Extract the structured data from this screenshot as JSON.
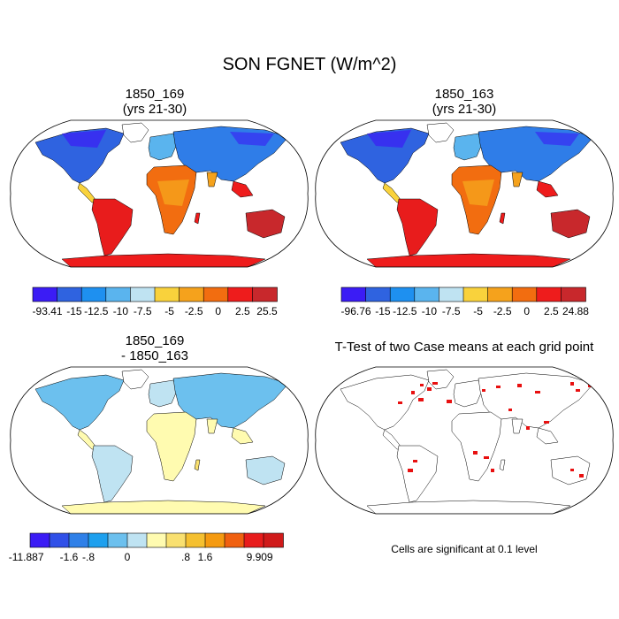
{
  "figure": {
    "title": "SON FGNET (W/m^2)"
  },
  "panels": [
    {
      "title_line1": "1850_169",
      "title_line2": "(yrs 21-30)",
      "colorbar": {
        "labels": [
          "-93.41",
          "-15",
          "-12.5",
          "-10",
          "-7.5",
          "-5",
          "-2.5",
          "0",
          "2.5",
          "25.5"
        ],
        "colors": [
          "#3b1cf5",
          "#2f63e0",
          "#1e90f0",
          "#5ab4ee",
          "#bfe3f2",
          "#f9d23c",
          "#f5a21c",
          "#f26d10",
          "#ee1c1c",
          "#c8282c"
        ]
      }
    },
    {
      "title_line1": "1850_163",
      "title_line2": "(yrs 21-30)",
      "colorbar": {
        "labels": [
          "-96.76",
          "-15",
          "-12.5",
          "-10",
          "-7.5",
          "-5",
          "-2.5",
          "0",
          "2.5",
          "24.88"
        ],
        "colors": [
          "#3b1cf5",
          "#2f63e0",
          "#1e90f0",
          "#5ab4ee",
          "#bfe3f2",
          "#f9d23c",
          "#f5a21c",
          "#f26d10",
          "#ee1c1c",
          "#c8282c"
        ]
      }
    },
    {
      "title_line1": "1850_169",
      "title_line2": "- 1850_163",
      "colorbar": {
        "labels": [
          "-11.887",
          "-1.6",
          "-.8",
          "0",
          ".8",
          "1.6",
          "9.909"
        ],
        "colors": [
          "#3b1cf5",
          "#3050e8",
          "#2f80e8",
          "#1ea0ee",
          "#6cc0ee",
          "#bfe3f2",
          "#fffbb0",
          "#f9e070",
          "#f5c030",
          "#f59a10",
          "#f06010",
          "#e81c1c",
          "#d01a1a"
        ]
      }
    },
    {
      "title_line1": "T-Test of two Case means at each grid point",
      "note": "Cells are significant at 0.1 level",
      "significance_color": "#e81010"
    }
  ]
}
